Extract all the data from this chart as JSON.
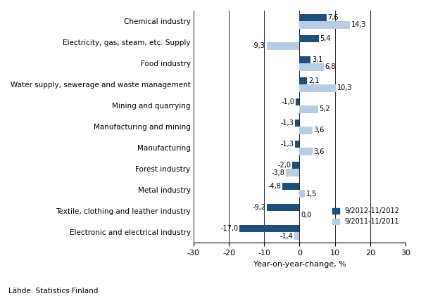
{
  "categories": [
    "Chemical industry",
    "Electricity, gas, steam, etc. Supply",
    "Food industry",
    "Water supply, sewerage and waste management",
    "Mining and quarrying",
    "Manufacturing and mining",
    "Manufacturing",
    "Forest industry",
    "Metal industry",
    "Textile, clothing and leather industry",
    "Electronic and electrical industry"
  ],
  "series_2012": [
    7.6,
    5.4,
    3.1,
    2.1,
    -1.0,
    -1.3,
    -1.3,
    -2.0,
    -4.8,
    -9.2,
    -17.0
  ],
  "series_2011": [
    14.3,
    -9.3,
    6.8,
    10.3,
    5.2,
    3.6,
    3.6,
    -3.8,
    1.5,
    0.0,
    -1.4
  ],
  "labels_2012": [
    "7,6",
    "5,4",
    "3,1",
    "2,1",
    "-1,0",
    "-1,3",
    "-1,3",
    "-2,0",
    "-4,8",
    "-9,2",
    "-17,0"
  ],
  "labels_2011": [
    "14,3",
    "-9,3",
    "6,8",
    "10,3",
    "5,2",
    "3,6",
    "3,6",
    "-3,8",
    "1,5",
    "0,0",
    "-1,4"
  ],
  "color_2012": "#1F4E79",
  "color_2011": "#B8CCE4",
  "xlabel": "Year-on-year-change, %",
  "source": "Lähde: Statistics Finland",
  "legend_2012": "9/2012-11/2012",
  "legend_2011": "9/2011-11/2011",
  "xlim": [
    -30,
    30
  ],
  "xticks": [
    -30,
    -20,
    -10,
    0,
    10,
    20,
    30
  ]
}
